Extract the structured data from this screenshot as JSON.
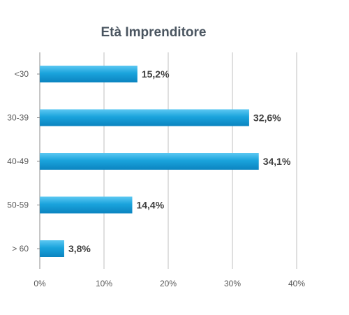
{
  "chart_data": {
    "type": "bar",
    "orientation": "horizontal",
    "title": "Età Imprenditore",
    "categories": [
      "<30",
      "30-39",
      "40-49",
      "50-59",
      "> 60"
    ],
    "values": [
      15.2,
      32.6,
      34.1,
      14.4,
      3.8
    ],
    "data_labels": [
      "15,2%",
      "32,6%",
      "34,1%",
      "14,4%",
      "3,8%"
    ],
    "xlim": [
      0,
      40
    ],
    "x_ticks": [
      0,
      10,
      20,
      30,
      40
    ],
    "x_tick_labels": [
      "0%",
      "10%",
      "20%",
      "30%",
      "40%"
    ],
    "grid": true,
    "legend": "none",
    "bar_color": "#1aa3dc"
  }
}
